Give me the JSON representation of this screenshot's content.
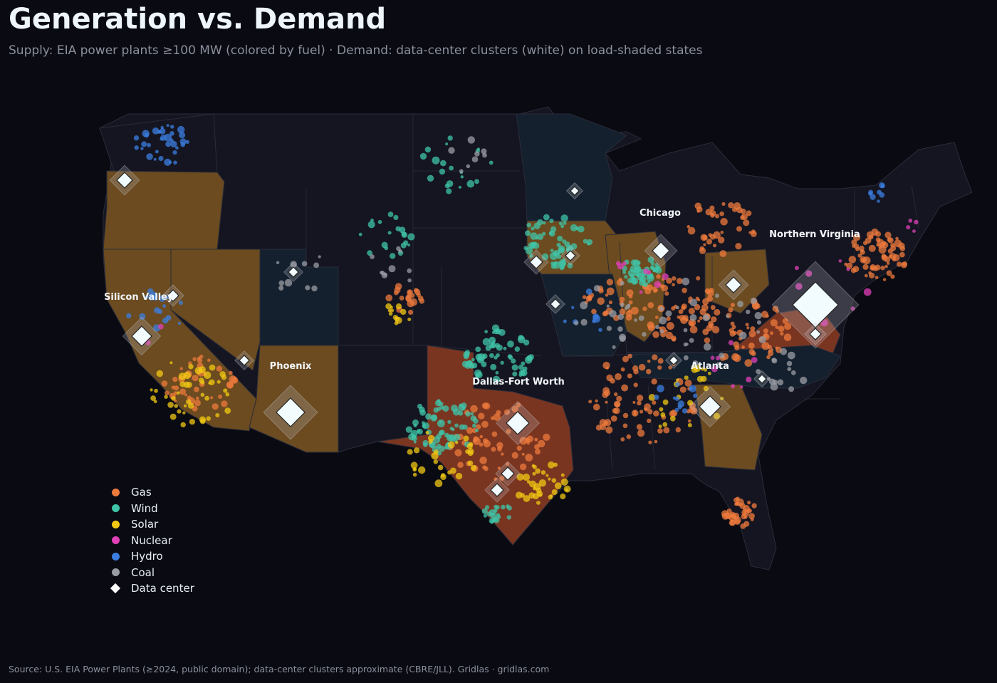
{
  "title": "Generation vs. Demand",
  "subtitle": "Supply: EIA power plants ≥100 MW (colored by fuel) · Demand: data-center clusters (white) on load-shaded states",
  "source": "Source: U.S. EIA Power Plants (≥2024, public domain); data-center clusters approximate (CBRE/JLL). Gridlas · gridlas.com",
  "colors": {
    "background": "#0a0b12",
    "state_base": "#141520",
    "state_border": "#2a2c3a",
    "load_high": "#7a3520",
    "load_mid": "#6b4b1f",
    "load_low": "#14202e",
    "data_center": "#ffffff"
  },
  "legend": [
    {
      "label": "Gas",
      "color": "#ee7a3c",
      "shape": "circle"
    },
    {
      "label": "Wind",
      "color": "#3fc4a8",
      "shape": "circle"
    },
    {
      "label": "Solar",
      "color": "#f2c813",
      "shape": "circle"
    },
    {
      "label": "Nuclear",
      "color": "#e040b8",
      "shape": "circle"
    },
    {
      "label": "Hydro",
      "color": "#3b7de0",
      "shape": "circle"
    },
    {
      "label": "Coal",
      "color": "#9a9ca4",
      "shape": "circle"
    },
    {
      "label": "Data center",
      "color": "#ffffff",
      "shape": "diamond"
    }
  ],
  "data_center_labels": [
    "Chicago",
    "Northern Virginia",
    "Silicon Valley",
    "Phoenix",
    "Dallas-Fort Worth",
    "Atlanta"
  ]
}
